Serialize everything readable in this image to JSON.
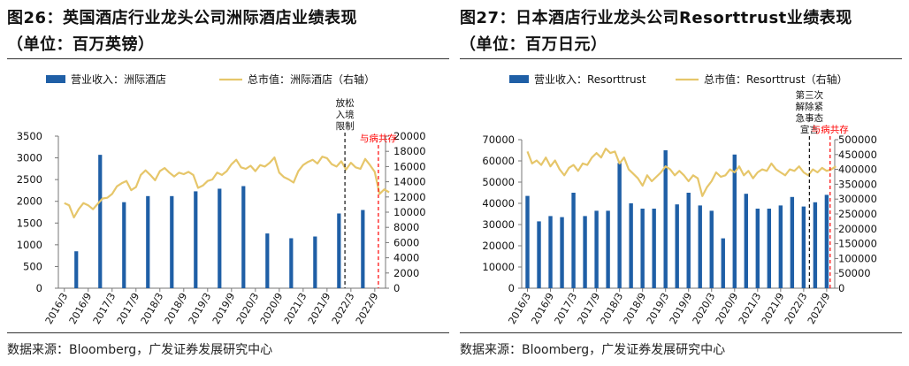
{
  "charts": [
    {
      "id": "left",
      "title": "图26：英国酒店行业龙头公司洲际酒店业绩表现",
      "subtitle": "（单位：百万英镑）",
      "source": "数据来源：Bloomberg，广发证券发展研究中心",
      "legend": {
        "bar": "营业收入：洲际酒店",
        "line": "总市值：洲际酒店（右轴）"
      },
      "annotations": [
        {
          "label_lines": [
            "放松",
            "入境",
            "限制"
          ],
          "x_index": 23.5,
          "color": "#111111",
          "dash": "black"
        },
        {
          "label_lines": [
            "与病共存"
          ],
          "x_index": 26.3,
          "color": "#ff0000",
          "dash": "red"
        }
      ]
    },
    {
      "id": "right",
      "title": "图27：日本酒店行业龙头公司Resorttrust业绩表现",
      "subtitle": "（单位：百万日元）",
      "source": "数据来源：Bloomberg，广发证券发展研究中心",
      "legend": {
        "bar": "营业收入：Resorttrust",
        "line": "总市值：Resorttrust（右轴）"
      },
      "annotations": [
        {
          "label_lines": [
            "第三次",
            "解除紧",
            "急事态",
            "宣言"
          ],
          "x_index": 24.5,
          "color": "#111111",
          "dash": "black"
        },
        {
          "label_lines": [
            "与病共存"
          ],
          "x_index": 26.3,
          "color": "#ff0000",
          "dash": "red"
        }
      ]
    }
  ],
  "chart_data": [
    {
      "type": "bar",
      "categories": [
        "2016/3",
        "2016/9",
        "2017/3",
        "2017/9",
        "2018/3",
        "2018/9",
        "2019/3",
        "2019/9",
        "2020/3",
        "2020/9",
        "2021/3",
        "2021/9",
        "2022/3",
        "2022/9"
      ],
      "series": [
        {
          "type": "bar",
          "name": "营业收入：洲际酒店",
          "axis": "left",
          "color": "#1f5fa6",
          "x": [
            1,
            3,
            5,
            7,
            9,
            11,
            13,
            15,
            17,
            19,
            21,
            23,
            25
          ],
          "values": [
            850,
            3070,
            1980,
            2120,
            2120,
            2230,
            2290,
            2350,
            1260,
            1150,
            1190,
            1720,
            1800
          ]
        },
        {
          "type": "line",
          "name": "总市值：洲际酒店（右轴）",
          "axis": "right",
          "color": "#e6c66a",
          "x": [
            0,
            0.4,
            0.8,
            1.2,
            1.6,
            2.0,
            2.4,
            2.8,
            3.2,
            3.6,
            4.0,
            4.4,
            4.8,
            5.2,
            5.6,
            6.0,
            6.4,
            6.8,
            7.2,
            7.6,
            8.0,
            8.4,
            8.8,
            9.2,
            9.6,
            10.0,
            10.4,
            10.8,
            11.2,
            11.6,
            12.0,
            12.4,
            12.8,
            13.2,
            13.6,
            14.0,
            14.4,
            14.8,
            15.2,
            15.6,
            16.0,
            16.4,
            16.8,
            17.2,
            17.6,
            18.0,
            18.4,
            18.8,
            19.2,
            19.6,
            20.0,
            20.4,
            20.8,
            21.2,
            21.6,
            22.0,
            22.4,
            22.8,
            23.2,
            23.6,
            24.0,
            24.4,
            24.8,
            25.2,
            25.6,
            26.0,
            26.4,
            26.8,
            27.2
          ],
          "values": [
            11200,
            10900,
            9300,
            10400,
            11200,
            10900,
            10400,
            11100,
            11800,
            11900,
            12400,
            13400,
            13800,
            14100,
            12900,
            13300,
            14900,
            15500,
            14900,
            14200,
            15400,
            15800,
            15200,
            14700,
            15200,
            15000,
            15300,
            14900,
            13200,
            13500,
            14100,
            14300,
            15200,
            14900,
            15400,
            16300,
            16900,
            15900,
            15700,
            16100,
            15400,
            16200,
            16000,
            16500,
            17200,
            15200,
            14600,
            14300,
            13900,
            15400,
            16200,
            16600,
            16900,
            16400,
            17300,
            17100,
            16300,
            16000,
            16700,
            15600,
            16500,
            15900,
            15700,
            17000,
            16200,
            15300,
            12400,
            13000,
            12600
          ]
        }
      ],
      "ylim": [
        0,
        3500
      ],
      "yticks": [
        0,
        500,
        1000,
        1500,
        2000,
        2500,
        3000,
        3500
      ],
      "y2lim": [
        0,
        20000
      ],
      "y2ticks": [
        0,
        2000,
        4000,
        6000,
        8000,
        10000,
        12000,
        14000,
        16000,
        18000,
        20000
      ],
      "grid": false,
      "legend_position": "top"
    },
    {
      "type": "bar",
      "categories": [
        "2016/3",
        "2016/9",
        "2017/3",
        "2017/9",
        "2018/3",
        "2018/9",
        "2019/3",
        "2019/9",
        "2020/3",
        "2020/9",
        "2021/3",
        "2021/9",
        "2022/3",
        "2022/9"
      ],
      "series": [
        {
          "type": "bar",
          "name": "营业收入：Resorttrust",
          "axis": "left",
          "color": "#1f5fa6",
          "x": [
            0,
            1,
            2,
            3,
            4,
            5,
            6,
            7,
            8,
            9,
            10,
            11,
            12,
            13,
            14,
            15,
            16,
            17,
            18,
            19,
            20,
            21,
            22,
            23,
            24,
            25,
            26
          ],
          "values": [
            43500,
            31500,
            34000,
            33500,
            45000,
            34000,
            36500,
            36500,
            59000,
            40000,
            37500,
            37500,
            65000,
            39500,
            45000,
            39000,
            36500,
            23500,
            63000,
            44500,
            37500,
            37500,
            39000,
            43000,
            38500,
            40500,
            44000
          ]
        },
        {
          "type": "line",
          "name": "总市值：Resorttrust（右轴）",
          "axis": "right",
          "color": "#e6c66a",
          "x": [
            0,
            0.4,
            0.8,
            1.2,
            1.6,
            2.0,
            2.4,
            2.8,
            3.2,
            3.6,
            4.0,
            4.4,
            4.8,
            5.2,
            5.6,
            6.0,
            6.4,
            6.8,
            7.2,
            7.6,
            8.0,
            8.4,
            8.8,
            9.2,
            9.6,
            10.0,
            10.4,
            10.8,
            11.2,
            11.6,
            12.0,
            12.4,
            12.8,
            13.2,
            13.6,
            14.0,
            14.4,
            14.8,
            15.2,
            15.6,
            16.0,
            16.4,
            16.8,
            17.2,
            17.6,
            18.0,
            18.4,
            18.8,
            19.2,
            19.6,
            20.0,
            20.4,
            20.8,
            21.2,
            21.6,
            22.0,
            22.4,
            22.8,
            23.2,
            23.6,
            24.0,
            24.4,
            24.8,
            25.2,
            25.6,
            26.0,
            26.4,
            26.8
          ],
          "values": [
            460000,
            420000,
            430000,
            415000,
            440000,
            410000,
            430000,
            400000,
            380000,
            405000,
            415000,
            395000,
            420000,
            415000,
            440000,
            455000,
            440000,
            470000,
            455000,
            460000,
            420000,
            440000,
            400000,
            385000,
            370000,
            345000,
            380000,
            360000,
            375000,
            390000,
            410000,
            400000,
            380000,
            395000,
            380000,
            360000,
            380000,
            370000,
            310000,
            340000,
            360000,
            390000,
            375000,
            380000,
            400000,
            390000,
            410000,
            380000,
            395000,
            370000,
            390000,
            400000,
            395000,
            420000,
            400000,
            390000,
            380000,
            400000,
            395000,
            410000,
            390000,
            380000,
            400000,
            390000,
            405000,
            395000,
            400000,
            410000
          ]
        }
      ],
      "ylim": [
        0,
        70000
      ],
      "yticks": [
        0,
        10000,
        20000,
        30000,
        40000,
        50000,
        60000,
        70000
      ],
      "y2lim": [
        0,
        500000
      ],
      "y2ticks": [
        0,
        50000,
        100000,
        150000,
        200000,
        250000,
        300000,
        350000,
        400000,
        450000,
        500000
      ],
      "grid": false,
      "legend_position": "top"
    }
  ]
}
